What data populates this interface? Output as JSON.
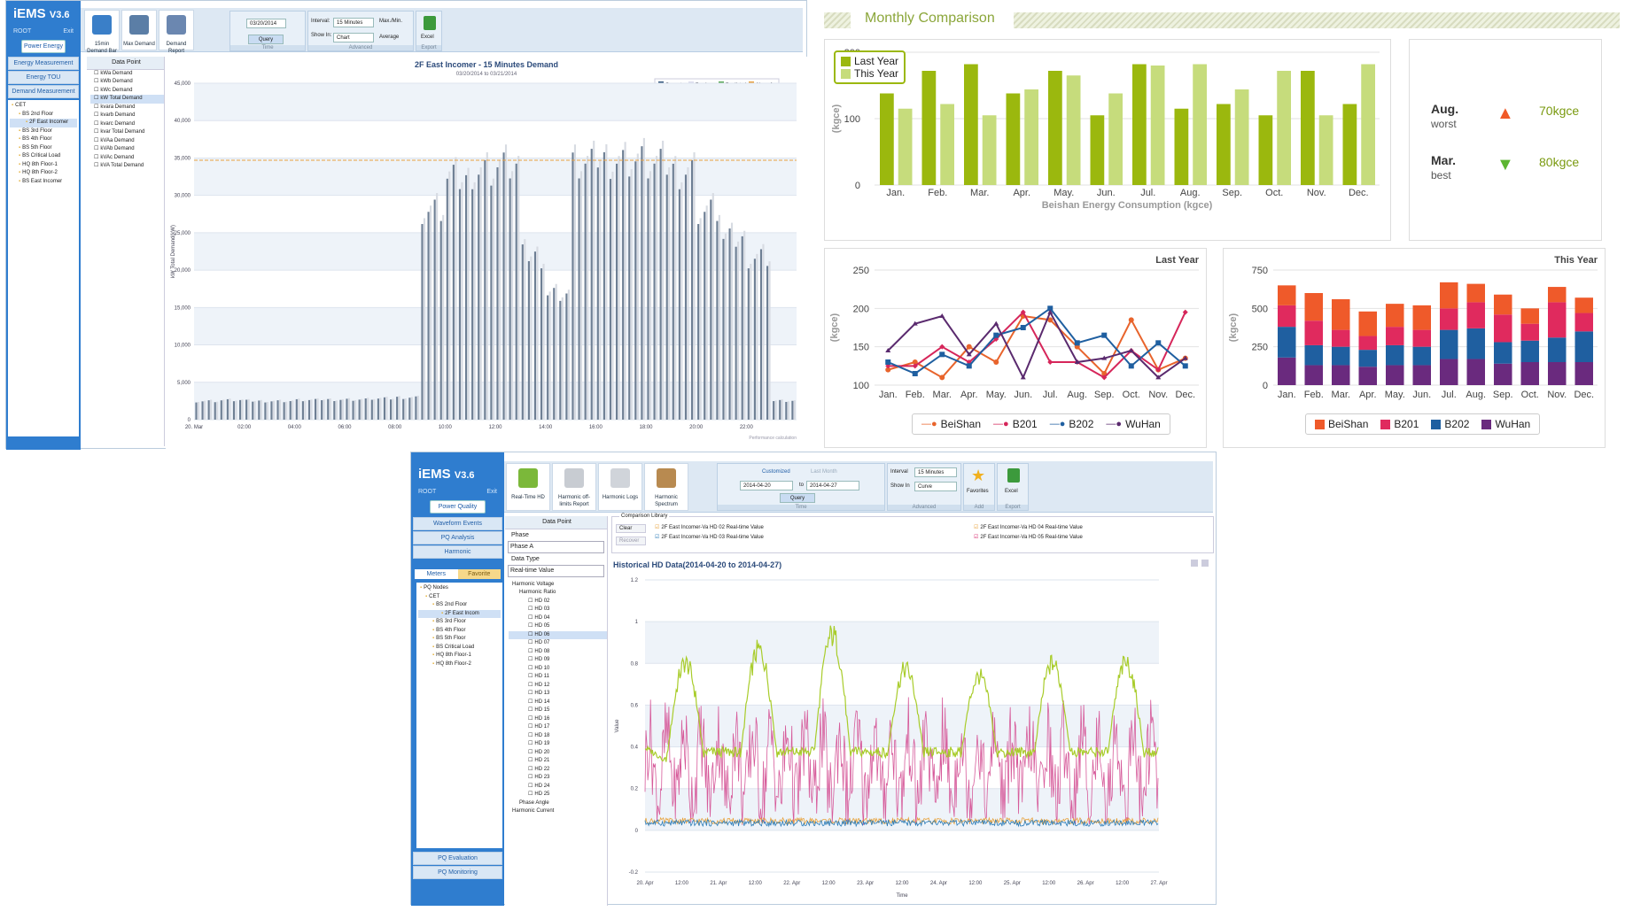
{
  "demand": {
    "app": {
      "name": "iEMS",
      "version": "V3.6",
      "user": "ROOT",
      "exit": "Exit"
    },
    "sidebar": {
      "active_button": "Power Energy",
      "menu": [
        "Energy Measurement",
        "Energy TOU",
        "Demand Measurement"
      ],
      "tree": [
        "CET",
        "BS 2nd Floor",
        "2F East Incomer",
        "BS 3rd Floor",
        "BS 4th Floor",
        "BS 5th Floor",
        "BS Critical Load",
        "HQ 8th Floor-1",
        "HQ 8th Floor-2",
        "BS East Incomer"
      ]
    },
    "toolbar": {
      "buttons": [
        "15min Demand Bar",
        "Max Demand",
        "Demand Report"
      ],
      "date": "03/20/2014",
      "query": "Query",
      "interval_label": "Interval:",
      "interval": "15 Minutes",
      "showin_label": "Show In:",
      "showin": "Chart",
      "maxmin": "Max./Min.",
      "average": "Average",
      "excel": "Excel",
      "groups": [
        "Time",
        "Advanced",
        "Export"
      ]
    },
    "datapoint": {
      "header": "Data Point",
      "items": [
        "kWa Demand",
        "kWb Demand",
        "kWc Demand",
        "kW Total Demand",
        "kvara Demand",
        "kvarb Demand",
        "kvarc Demand",
        "kvar Total Demand",
        "kVAa Demand",
        "kVAb Demand",
        "kVAc Demand",
        "kVA Total Demand"
      ]
    },
    "chart_data": {
      "type": "bar",
      "title": "2F East Incomer - 15 Minutes Demand",
      "subtitle": "03/20/2014 to 03/21/2014",
      "ylabel": "kW Total Demand(kW)",
      "legend": [
        "Current",
        "Previous",
        "Predicted",
        "Alarm-1"
      ],
      "y_ticks": [
        "0",
        "5,000",
        "10,000",
        "15,000",
        "20,000",
        "25,000",
        "30,000",
        "35,000",
        "40,000",
        "45,000"
      ],
      "x_ticks": [
        "20. Mar",
        "02:00",
        "04:00",
        "06:00",
        "08:00",
        "10:00",
        "12:00",
        "14:00",
        "16:00",
        "18:00",
        "20:00",
        "22:00"
      ],
      "ylim": [
        0,
        45000
      ],
      "alarm_level": 34700,
      "hours_start": 0,
      "hourly_profile": [
        2500,
        2600,
        2500,
        2500,
        2600,
        2700,
        2700,
        2800,
        3000,
        28000,
        32000,
        33500,
        34000,
        22000,
        17000,
        34000,
        35000,
        34800,
        34000,
        33500,
        28000,
        24000,
        22000,
        2500
      ],
      "footer": "Performance calculation"
    }
  },
  "comparison": {
    "title": "Monthly Comparison",
    "months": [
      "Jan.",
      "Feb.",
      "Mar.",
      "Apr.",
      "May.",
      "Jun.",
      "Jul.",
      "Aug.",
      "Sep.",
      "Oct.",
      "Nov.",
      "Dec."
    ],
    "bar": {
      "type": "bar",
      "xlabel": "Beishan Energy Consumption (kgce)",
      "ylabel": "(kgce)",
      "ylim": [
        0,
        200
      ],
      "y_ticks": [
        "0",
        "100",
        "200"
      ],
      "series": [
        {
          "name": "Last Year",
          "color": "#9bb80e",
          "values": [
            138,
            172,
            182,
            138,
            172,
            105,
            182,
            115,
            122,
            105,
            172,
            122
          ]
        },
        {
          "name": "This Year",
          "color": "#c6dc7c",
          "values": [
            115,
            122,
            105,
            144,
            165,
            138,
            180,
            182,
            144,
            172,
            105,
            182
          ]
        }
      ]
    },
    "stats": [
      {
        "month": "Aug.",
        "label": "worst",
        "value": "70kgce",
        "direction": "up",
        "color": "#f05a28"
      },
      {
        "month": "Mar.",
        "label": "best",
        "value": "80kgce",
        "direction": "down",
        "color": "#5cb531"
      }
    ],
    "line": {
      "type": "line",
      "title": "Last Year",
      "ylabel": "(kgce)",
      "ylim": [
        100,
        250
      ],
      "y_ticks": [
        "100",
        "150",
        "200",
        "250"
      ],
      "series": [
        {
          "name": "BeiShan",
          "color": "#e8642c",
          "marker": "circle",
          "values": [
            120,
            130,
            110,
            150,
            130,
            190,
            185,
            150,
            115,
            185,
            120,
            135
          ]
        },
        {
          "name": "B201",
          "color": "#d6265a",
          "marker": "diamond",
          "values": [
            125,
            125,
            150,
            130,
            160,
            195,
            130,
            130,
            110,
            145,
            120,
            195
          ]
        },
        {
          "name": "B202",
          "color": "#1f5fa0",
          "marker": "square",
          "values": [
            130,
            115,
            140,
            125,
            165,
            175,
            200,
            155,
            165,
            125,
            155,
            125
          ]
        },
        {
          "name": "WuHan",
          "color": "#5a2a6e",
          "marker": "triangle",
          "values": [
            145,
            180,
            190,
            140,
            180,
            110,
            195,
            130,
            135,
            145,
            110,
            135
          ]
        }
      ]
    },
    "stacked": {
      "type": "bar",
      "title": "This Year",
      "ylabel": "(kgce)",
      "ylim": [
        0,
        750
      ],
      "y_ticks": [
        "0",
        "250",
        "500",
        "750"
      ],
      "series": [
        {
          "name": "WuHan",
          "color": "#6a2a7e",
          "values": [
            180,
            130,
            130,
            120,
            130,
            130,
            170,
            170,
            140,
            150,
            150,
            150
          ]
        },
        {
          "name": "B202",
          "color": "#1f5fa0",
          "values": [
            200,
            130,
            120,
            110,
            130,
            120,
            190,
            200,
            140,
            140,
            160,
            200
          ]
        },
        {
          "name": "B201",
          "color": "#e02a5e",
          "values": [
            140,
            160,
            110,
            90,
            120,
            110,
            140,
            170,
            180,
            110,
            230,
            120
          ]
        },
        {
          "name": "BeiShan",
          "color": "#ef5a2a",
          "values": [
            130,
            180,
            200,
            160,
            150,
            160,
            170,
            120,
            130,
            100,
            100,
            100
          ]
        }
      ]
    }
  },
  "harmonic": {
    "app": {
      "name": "iEMS",
      "version": "V3.6",
      "user": "ROOT",
      "exit": "Exit"
    },
    "sidebar": {
      "active_button": "Power Quality",
      "menu": [
        "Waveform Events",
        "PQ Analysis",
        "Harmonic"
      ],
      "tabs": [
        "Meters",
        "Favorite"
      ],
      "tree": [
        "PQ Nodes",
        "CET",
        "BS 2nd Floor",
        "2F East Incom",
        "BS 3rd Floor",
        "BS 4th Floor",
        "BS 5th Floor",
        "BS Critical Load",
        "HQ 8th Floor-1",
        "HQ 8th Floor-2"
      ],
      "bottom": [
        "PQ Evaluation",
        "PQ Monitoring"
      ]
    },
    "toolbar": {
      "buttons": [
        "Real-Time HD",
        "Harmonic off-limits Report",
        "Harmonic Logs",
        "Harmonic Spectrum"
      ],
      "mode": "Customized",
      "last_month": "Last Month",
      "from": "2014-04-20",
      "to_label": "to",
      "to": "2014-04-27",
      "query": "Query",
      "interval_label": "Interval",
      "interval": "15 Minutes",
      "showin_label": "Show In",
      "showin": "Curve",
      "favorites": "Favorites",
      "excel": "Excel",
      "groups": [
        "Time",
        "Advanced",
        "Add",
        "Export"
      ]
    },
    "datapoint": {
      "header": "Data Point",
      "phase_label": "Phase",
      "phase": "Phase A",
      "type_label": "Data Type",
      "type": "Real-time Value",
      "tree_root": "Harmonic Voltage",
      "tree_sub": "Harmonic Ratio",
      "items": [
        "HD 02",
        "HD 03",
        "HD 04",
        "HD 05",
        "HD 06",
        "HD 07",
        "HD 08",
        "HD 09",
        "HD 10",
        "HD 11",
        "HD 12",
        "HD 13",
        "HD 14",
        "HD 15",
        "HD 16",
        "HD 17",
        "HD 18",
        "HD 19",
        "HD 20",
        "HD 21",
        "HD 22",
        "HD 23",
        "HD 24",
        "HD 25"
      ],
      "tree_tail": [
        "Phase Angle",
        "Harmonic Current"
      ]
    },
    "comparison": {
      "label": "Comparison Library",
      "clear": "Clear",
      "recover": "Recover",
      "checks": [
        {
          "label": "2F East Incomer-Va HD 02 Real-time Value",
          "color": "#e8a23a"
        },
        {
          "label": "2F East Incomer-Va HD 03 Real-time Value",
          "color": "#2a7bb8"
        },
        {
          "label": "2F East Incomer-Va HD 04 Real-time Value",
          "color": "#e8a23a"
        },
        {
          "label": "2F East Incomer-Va HD 05 Real-time Value",
          "color": "#d6266a"
        }
      ]
    },
    "chart_data": {
      "type": "line",
      "title": "Historical HD Data(2014-04-20 to 2014-04-27)",
      "ylabel": "Value",
      "xlabel": "Time",
      "ylim": [
        -0.2,
        1.2
      ],
      "y_ticks": [
        "-0.2",
        "0",
        "0.2",
        "0.4",
        "0.6",
        "0.8",
        "1",
        "1.2"
      ],
      "x_ticks": [
        "20. Apr",
        "12:00",
        "21. Apr",
        "12:00",
        "22. Apr",
        "12:00",
        "23. Apr",
        "12:00",
        "24. Apr",
        "12:00",
        "25. Apr",
        "12:00",
        "26. Apr",
        "12:00",
        "27. Apr"
      ],
      "series": [
        {
          "name": "HD 03",
          "color": "#a8cc2a",
          "daily_peak": [
            0.85,
            0.92,
            1.0,
            0.82,
            0.78,
            0.85,
            0.85
          ],
          "base": 0.35
        },
        {
          "name": "HD 05",
          "color": "#d65a9a",
          "base": 0.3,
          "amp": 0.2
        },
        {
          "name": "HD 02",
          "color": "#e8a23a",
          "base": 0.03
        },
        {
          "name": "HD 04",
          "color": "#2a7bb8",
          "base": 0.02
        }
      ]
    }
  }
}
